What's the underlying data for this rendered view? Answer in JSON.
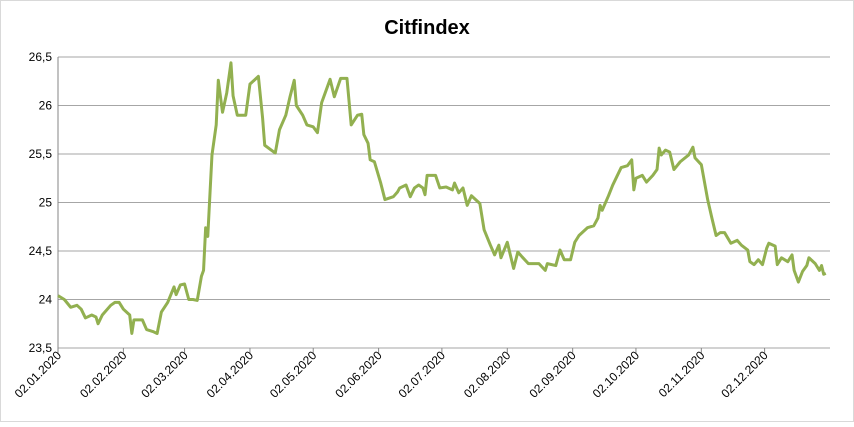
{
  "chart_data": {
    "type": "line",
    "title": "Citfindex",
    "x": [
      0,
      3,
      6,
      9,
      11,
      13,
      16,
      18,
      19,
      21,
      25,
      27,
      29,
      31,
      34,
      35,
      36,
      40,
      42,
      45,
      47,
      49,
      52,
      55,
      56,
      58,
      60,
      62,
      64,
      66,
      68,
      69,
      70,
      71,
      73,
      75,
      76,
      78,
      80,
      82,
      83,
      85,
      89,
      91,
      95,
      97,
      98,
      103,
      105,
      108,
      110,
      112,
      113,
      116,
      118,
      121,
      123,
      125,
      129,
      131,
      134,
      137,
      139,
      142,
      144,
      145,
      147,
      148,
      150,
      153,
      155,
      159,
      161,
      162,
      165,
      167,
      169,
      171,
      173,
      174,
      175,
      179,
      181,
      184,
      187,
      188,
      190,
      192,
      194,
      196,
      200,
      202,
      205,
      207,
      209,
      210,
      213,
      216,
      218,
      220,
      223,
      228,
      231,
      232,
      236,
      238,
      240,
      243,
      245,
      247,
      251,
      254,
      256,
      257,
      258,
      261,
      263,
      267,
      270,
      272,
      273,
      274,
      277,
      279,
      282,
      284,
      285,
      286,
      288,
      290,
      292,
      295,
      299,
      301,
      302,
      305,
      308,
      310,
      312,
      314,
      316,
      319,
      322,
      324,
      327,
      328,
      330,
      332,
      334,
      336,
      337,
      340,
      341,
      343,
      346,
      348,
      349,
      351,
      353,
      355,
      356,
      359,
      361,
      362,
      363,
      364
    ],
    "series": [
      {
        "name": "Citfindex",
        "color": "#92b050",
        "values": [
          24.04,
          24.0,
          23.92,
          23.94,
          23.9,
          23.81,
          23.84,
          23.82,
          23.75,
          23.84,
          23.94,
          23.97,
          23.97,
          23.9,
          23.84,
          23.65,
          23.79,
          23.79,
          23.69,
          23.67,
          23.65,
          23.87,
          23.97,
          24.13,
          24.05,
          24.15,
          24.16,
          24.0,
          24.0,
          23.99,
          24.24,
          24.3,
          24.74,
          24.65,
          25.49,
          25.8,
          26.26,
          25.93,
          26.13,
          26.44,
          26.1,
          25.9,
          25.9,
          26.22,
          26.3,
          25.87,
          25.59,
          25.51,
          25.75,
          25.9,
          26.09,
          26.26,
          26.0,
          25.9,
          25.8,
          25.78,
          25.72,
          26.03,
          26.27,
          26.09,
          26.28,
          26.28,
          25.8,
          25.9,
          25.91,
          25.7,
          25.61,
          25.44,
          25.42,
          25.2,
          25.03,
          25.06,
          25.11,
          25.15,
          25.18,
          25.06,
          25.15,
          25.18,
          25.15,
          25.08,
          25.28,
          25.28,
          25.15,
          25.16,
          25.13,
          25.2,
          25.1,
          25.15,
          24.97,
          25.07,
          24.99,
          24.72,
          24.56,
          24.46,
          24.56,
          24.43,
          24.59,
          24.32,
          24.49,
          24.44,
          24.37,
          24.37,
          24.3,
          24.37,
          24.35,
          24.51,
          24.41,
          24.41,
          24.59,
          24.66,
          24.74,
          24.76,
          24.84,
          24.97,
          24.92,
          25.07,
          25.18,
          25.36,
          25.38,
          25.44,
          25.13,
          25.25,
          25.28,
          25.21,
          25.28,
          25.34,
          25.56,
          25.49,
          25.54,
          25.52,
          25.34,
          25.42,
          25.49,
          25.57,
          25.46,
          25.39,
          25.03,
          24.84,
          24.66,
          24.69,
          24.69,
          24.58,
          24.61,
          24.56,
          24.51,
          24.39,
          24.36,
          24.41,
          24.36,
          24.53,
          24.58,
          24.55,
          24.36,
          24.43,
          24.39,
          24.46,
          24.3,
          24.18,
          24.29,
          24.35,
          24.43,
          24.37,
          24.3,
          24.35,
          24.26,
          24.27
        ]
      }
    ],
    "xlim": [
      0,
      366
    ],
    "xticks": [
      {
        "value": 0,
        "label": "02.01.2020"
      },
      {
        "value": 31,
        "label": "02.02.2020"
      },
      {
        "value": 60,
        "label": "02.03.2020"
      },
      {
        "value": 91,
        "label": "02.04.2020"
      },
      {
        "value": 121,
        "label": "02.05.2020"
      },
      {
        "value": 152,
        "label": "02.06.2020"
      },
      {
        "value": 182,
        "label": "02.07.2020"
      },
      {
        "value": 213,
        "label": "02.08.2020"
      },
      {
        "value": 244,
        "label": "02.09.2020"
      },
      {
        "value": 274,
        "label": "02.10.2020"
      },
      {
        "value": 305,
        "label": "02.11.2020"
      },
      {
        "value": 335,
        "label": "02.12.2020"
      }
    ],
    "ylim": [
      23.5,
      26.5
    ],
    "yticks": [
      {
        "value": 23.5,
        "label": "23,5"
      },
      24,
      {
        "value": 24.5,
        "label": "24,5"
      },
      25,
      {
        "value": 25.5,
        "label": "25,5"
      },
      26,
      {
        "value": 26.5,
        "label": "26,5"
      }
    ],
    "grid": true
  }
}
